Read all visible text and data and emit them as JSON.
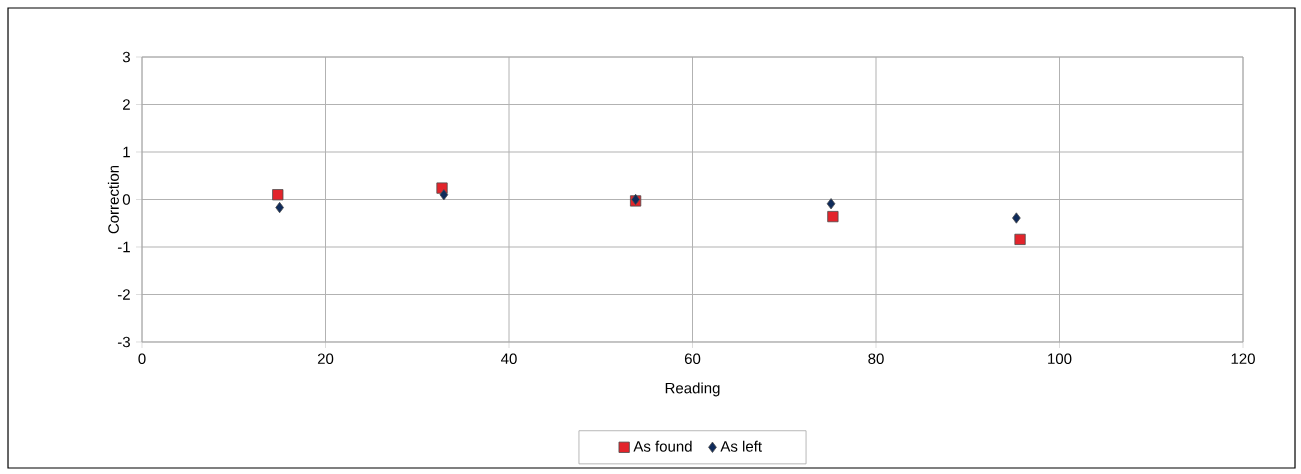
{
  "chart_data": {
    "type": "scatter",
    "xlabel": "Reading",
    "ylabel": "Correction",
    "xlim": [
      0,
      120
    ],
    "ylim": [
      -3,
      3
    ],
    "xticks": [
      0,
      20,
      40,
      60,
      80,
      100,
      120
    ],
    "yticks": [
      -3,
      -2,
      -1,
      0,
      1,
      2,
      3
    ],
    "grid": true,
    "legend": "bottom",
    "series": [
      {
        "name": "As found",
        "color": "#e3242b",
        "marker": "square",
        "x": [
          14.8,
          32.7,
          53.8,
          75.3,
          95.7
        ],
        "values": [
          0.1,
          0.24,
          -0.03,
          -0.36,
          -0.84
        ]
      },
      {
        "name": "As left",
        "color": "#0f2b5b",
        "marker": "diamond",
        "x": [
          15.0,
          32.9,
          53.8,
          75.1,
          95.3
        ],
        "values": [
          -0.17,
          0.1,
          0.0,
          -0.09,
          -0.39
        ]
      }
    ]
  }
}
